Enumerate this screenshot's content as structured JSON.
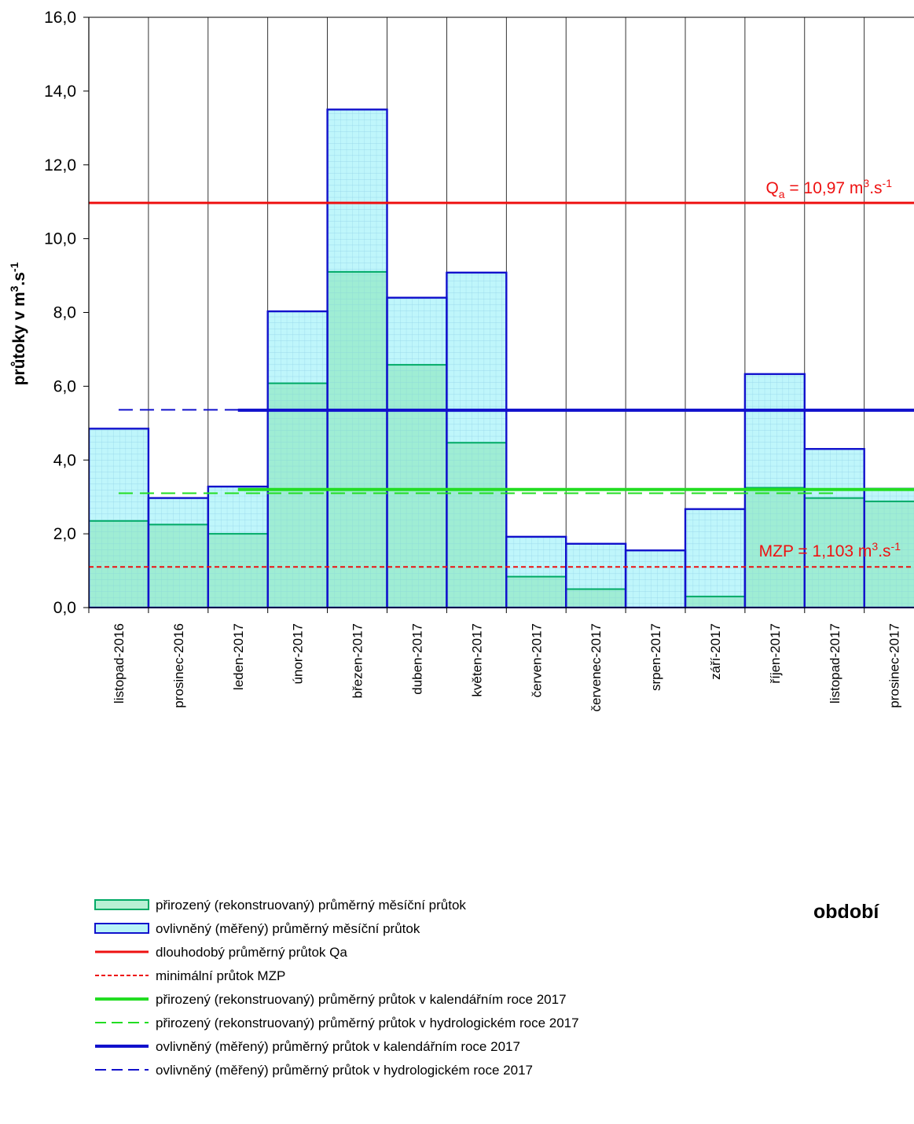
{
  "chart_data": {
    "type": "bar",
    "categories": [
      "listopad-2016",
      "prosinec-2016",
      "leden-2017",
      "únor-2017",
      "březen-2017",
      "duben-2017",
      "květen-2017",
      "červen-2017",
      "červenec-2017",
      "srpen-2017",
      "září-2017",
      "říjen-2017",
      "listopad-2017",
      "prosinec-2017"
    ],
    "series": [
      {
        "name": "přirozený (rekonstruovaný) průměrný měsíční průtok",
        "color": "#00aa66",
        "values": [
          2.35,
          2.25,
          2.0,
          6.08,
          9.1,
          6.58,
          4.47,
          0.84,
          0.5,
          0.0,
          0.3,
          3.25,
          2.97,
          2.88
        ]
      },
      {
        "name": "ovlivněný (měřený) průměrný měsíční průtok",
        "color": "#1111cc",
        "values": [
          4.85,
          2.97,
          3.28,
          8.03,
          13.5,
          8.4,
          9.08,
          1.92,
          1.73,
          1.55,
          2.67,
          6.33,
          4.3,
          3.22
        ]
      }
    ],
    "reference_lines": [
      {
        "name": "dlouhodobý průměrný průtok Qa",
        "value": 10.97,
        "color": "#ee1111",
        "style": "solid",
        "from": 0,
        "to": 14
      },
      {
        "name": "minimální průtok MZP",
        "value": 1.103,
        "color": "#ee1111",
        "style": "dotted",
        "from": 0,
        "to": 14
      },
      {
        "name": "přirozený (rekonstruovaný) průměrný průtok v kalendářním roce 2017",
        "value": 3.2,
        "color": "#22dd22",
        "style": "solid",
        "from": 2.5,
        "to": 14
      },
      {
        "name": "přirozený (rekonstruovaný) průměrný průtok v hydrologickém roce 2017",
        "value": 3.1,
        "color": "#22dd22",
        "style": "dashed",
        "from": 0.5,
        "to": 12.5
      },
      {
        "name": "ovlivněný (měřený) průměrný průtok v kalendářním roce 2017",
        "value": 5.35,
        "color": "#1111cc",
        "style": "solid",
        "from": 2.5,
        "to": 14
      },
      {
        "name": "ovlivněný (měřený) průměrný průtok v hydrologickém roce 2017",
        "value": 5.36,
        "color": "#1111cc",
        "style": "dashed",
        "from": 0.5,
        "to": 12.5
      }
    ],
    "annotations": {
      "qa": {
        "main": "Q",
        "sub": "a",
        "mid": " = 10,97 m",
        "sup1": "3",
        "mid2": ".s",
        "sup2": "-1"
      },
      "mzp": {
        "main": "MZP = 1,103 m",
        "sup1": "3",
        "mid2": ".s",
        "sup2": "-1"
      }
    },
    "ylabel": {
      "main": "průtoky v m",
      "sup1": "3",
      "mid": ".s",
      "sup2": "-1"
    },
    "xlabel": "období",
    "ylim": [
      0,
      16
    ],
    "yticks": [
      "0,0",
      "2,0",
      "4,0",
      "6,0",
      "8,0",
      "10,0",
      "12,0",
      "14,0",
      "16,0"
    ],
    "grid": "vertical",
    "legend_position": "bottom-left",
    "legend": [
      {
        "label": "přirozený (rekonstruovaný) průměrný měsíční průtok",
        "kind": "box",
        "stroke": "#00aa66",
        "fill": "#b8f0d4"
      },
      {
        "label": "ovlivněný (měřený) průměrný měsíční průtok",
        "kind": "box",
        "stroke": "#1111cc",
        "fill": "#b8f4f8"
      },
      {
        "label": "dlouhodobý průměrný průtok Qa",
        "kind": "line",
        "stroke": "#ee1111",
        "style": "solid",
        "width": 3
      },
      {
        "label": "minimální průtok MZP",
        "kind": "line",
        "stroke": "#ee1111",
        "style": "dotted",
        "width": 2
      },
      {
        "label": "přirozený (rekonstruovaný) průměrný průtok v kalendářním roce 2017",
        "kind": "line",
        "stroke": "#22dd22",
        "style": "solid",
        "width": 4
      },
      {
        "label": "přirozený (rekonstruovaný) průměrný průtok v hydrologickém roce 2017",
        "kind": "line",
        "stroke": "#22dd22",
        "style": "dashed",
        "width": 2
      },
      {
        "label": "ovlivněný (měřený) průměrný průtok v kalendářním roce 2017",
        "kind": "line",
        "stroke": "#1111cc",
        "style": "solid",
        "width": 4
      },
      {
        "label": "ovlivněný (měřený) průměrný průtok v hydrologickém roce 2017",
        "kind": "line",
        "stroke": "#1111cc",
        "style": "dashed",
        "width": 2
      }
    ]
  }
}
